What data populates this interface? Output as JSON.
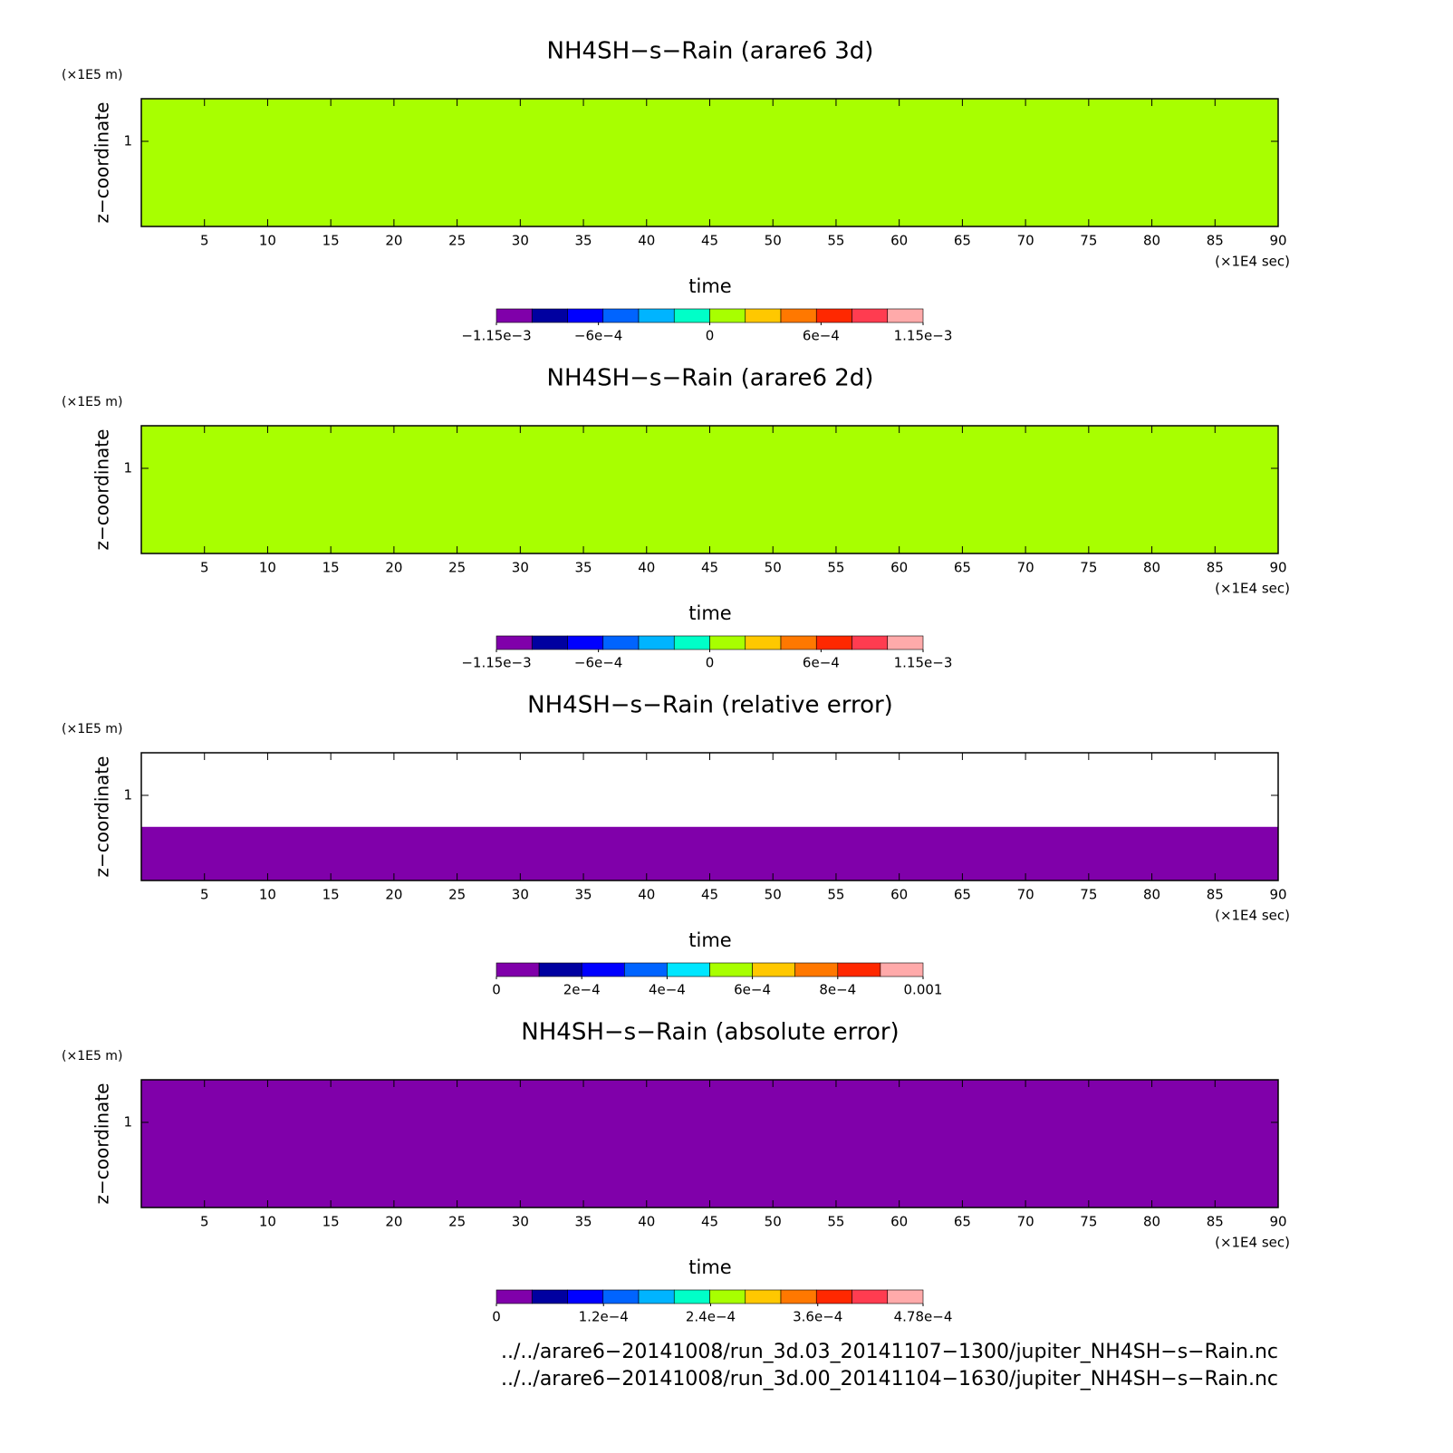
{
  "chart_data": [
    {
      "type": "contour",
      "title": "NH4SH−s−Rain (arare6 3d)",
      "x_label": "time",
      "y_label": "z−coordinate",
      "x_unit": "(×1E4 sec)",
      "y_unit": "(×1E5 m)",
      "xlim": [
        0,
        90
      ],
      "ylim": [
        0,
        1.5
      ],
      "xticks": [
        5,
        10,
        15,
        20,
        25,
        30,
        35,
        40,
        45,
        50,
        55,
        60,
        65,
        70,
        75,
        80,
        85,
        90
      ],
      "yticks": [
        1
      ],
      "fill_color": "#a8ff00",
      "colorbar": {
        "colors": [
          "#8000aa",
          "#0000a0",
          "#0000ff",
          "#0064ff",
          "#00b4ff",
          "#00ffc8",
          "#a8ff00",
          "#ffc800",
          "#ff7800",
          "#ff2800",
          "#ff3c50",
          "#ffaaaa"
        ],
        "ticks": [
          {
            "value": -0.00115,
            "label": "−1.15e−3"
          },
          {
            "value": -0.0006,
            "label": "−6e−4"
          },
          0,
          {
            "value": 0.0006,
            "label": "6e−4"
          },
          {
            "value": 0.00115,
            "label": "1.15e−3"
          }
        ]
      }
    },
    {
      "type": "contour",
      "title": "NH4SH−s−Rain (arare6 2d)",
      "x_label": "time",
      "y_label": "z−coordinate",
      "x_unit": "(×1E4 sec)",
      "y_unit": "(×1E5 m)",
      "xlim": [
        0,
        90
      ],
      "ylim": [
        0,
        1.5
      ],
      "xticks": [
        5,
        10,
        15,
        20,
        25,
        30,
        35,
        40,
        45,
        50,
        55,
        60,
        65,
        70,
        75,
        80,
        85,
        90
      ],
      "yticks": [
        1
      ],
      "fill_color": "#a8ff00",
      "colorbar": {
        "colors": [
          "#8000aa",
          "#0000a0",
          "#0000ff",
          "#0064ff",
          "#00b4ff",
          "#00ffc8",
          "#a8ff00",
          "#ffc800",
          "#ff7800",
          "#ff2800",
          "#ff3c50",
          "#ffaaaa"
        ],
        "ticks": [
          {
            "value": -0.00115,
            "label": "−1.15e−3"
          },
          {
            "value": -0.0006,
            "label": "−6e−4"
          },
          0,
          {
            "value": 0.0006,
            "label": "6e−4"
          },
          {
            "value": 0.00115,
            "label": "1.15e−3"
          }
        ]
      }
    },
    {
      "type": "contour",
      "title": "NH4SH−s−Rain (relative error)",
      "x_label": "time",
      "y_label": "z−coordinate",
      "x_unit": "(×1E4 sec)",
      "y_unit": "(×1E5 m)",
      "xlim": [
        0,
        90
      ],
      "ylim": [
        0,
        1.5
      ],
      "xticks": [
        5,
        10,
        15,
        20,
        25,
        30,
        35,
        40,
        45,
        50,
        55,
        60,
        65,
        70,
        75,
        80,
        85,
        90
      ],
      "yticks": [
        1
      ],
      "fill_color": "#ffffff",
      "filled_region": {
        "ylim": [
          0,
          0.63
        ],
        "color": "#8000aa"
      },
      "colorbar": {
        "colors": [
          "#8000aa",
          "#0000a0",
          "#0000ff",
          "#0064ff",
          "#00e6ff",
          "#a8ff00",
          "#ffc800",
          "#ff7800",
          "#ff2800",
          "#ffaaaa"
        ],
        "ticks": [
          0,
          {
            "value": 0.0002,
            "label": "2e−4"
          },
          {
            "value": 0.0004,
            "label": "4e−4"
          },
          {
            "value": 0.0006,
            "label": "6e−4"
          },
          {
            "value": 0.0008,
            "label": "8e−4"
          },
          0.001
        ]
      }
    },
    {
      "type": "contour",
      "title": "NH4SH−s−Rain (absolute error)",
      "x_label": "time",
      "y_label": "z−coordinate",
      "x_unit": "(×1E4 sec)",
      "y_unit": "(×1E5 m)",
      "xlim": [
        0,
        90
      ],
      "ylim": [
        0,
        1.5
      ],
      "xticks": [
        5,
        10,
        15,
        20,
        25,
        30,
        35,
        40,
        45,
        50,
        55,
        60,
        65,
        70,
        75,
        80,
        85,
        90
      ],
      "yticks": [
        1
      ],
      "fill_color": "#8000aa",
      "colorbar": {
        "colors": [
          "#8000aa",
          "#0000a0",
          "#0000ff",
          "#0064ff",
          "#00b4ff",
          "#00ffc8",
          "#a8ff00",
          "#ffc800",
          "#ff7800",
          "#ff2800",
          "#ff3c50",
          "#ffaaaa"
        ],
        "ticks": [
          0,
          {
            "value": 0.00012,
            "label": "1.2e−4"
          },
          {
            "value": 0.00024,
            "label": "2.4e−4"
          },
          {
            "value": 0.00036,
            "label": "3.6e−4"
          },
          {
            "value": 0.000478,
            "label": "4.78e−4"
          }
        ]
      }
    }
  ],
  "footer_lines": [
    "../../arare6−20141008/run_3d.03_20141107−1300/jupiter_NH4SH−s−Rain.nc",
    "../../arare6−20141008/run_3d.00_20141104−1630/jupiter_NH4SH−s−Rain.nc"
  ]
}
